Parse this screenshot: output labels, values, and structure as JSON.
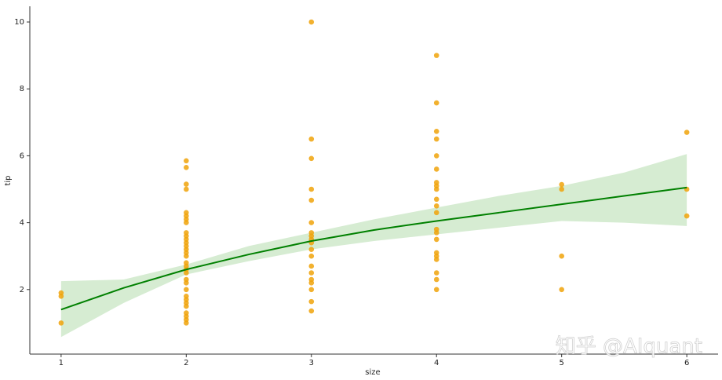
{
  "chart_data": {
    "type": "scatter",
    "xlabel": "size",
    "ylabel": "tip",
    "color": "#f0a30a",
    "x": [
      1,
      1,
      1,
      2,
      2,
      2,
      2,
      2,
      2,
      2,
      2,
      2,
      2,
      2,
      2,
      2,
      2,
      2,
      2,
      2,
      2,
      2,
      2,
      2,
      2,
      2,
      2,
      2,
      2,
      2,
      2,
      2,
      2,
      2,
      3,
      3,
      3,
      3,
      3,
      3,
      3,
      3,
      3,
      3,
      3,
      3,
      3,
      3,
      3,
      3,
      3,
      3,
      3,
      4,
      4,
      4,
      4,
      4,
      4,
      4,
      4,
      4,
      4,
      4,
      4,
      4,
      4,
      4,
      4,
      4,
      4,
      4,
      4,
      4,
      5,
      5,
      5,
      5,
      6,
      6,
      6
    ],
    "values": [
      1.0,
      1.8,
      1.9,
      1.0,
      1.1,
      1.2,
      1.3,
      1.5,
      1.6,
      1.7,
      1.8,
      2.0,
      2.2,
      2.3,
      2.5,
      2.6,
      2.7,
      2.8,
      3.0,
      3.1,
      3.2,
      3.3,
      3.4,
      3.5,
      3.6,
      3.7,
      4.0,
      4.1,
      4.2,
      4.3,
      5.0,
      5.15,
      5.65,
      5.85,
      1.36,
      1.64,
      2.0,
      2.2,
      2.3,
      2.5,
      2.7,
      3.0,
      3.2,
      3.4,
      3.5,
      3.6,
      3.7,
      4.0,
      4.67,
      5.0,
      5.92,
      6.5,
      10.0,
      2.0,
      2.3,
      2.5,
      2.9,
      3.0,
      3.1,
      3.5,
      3.7,
      3.8,
      4.3,
      4.5,
      4.7,
      5.0,
      5.1,
      5.2,
      5.6,
      6.0,
      6.5,
      6.73,
      7.58,
      9.0,
      2.0,
      3.0,
      5.0,
      5.14,
      4.2,
      5.0,
      6.7
    ],
    "fit": {
      "color": "#008000",
      "band_color": "#d6ecd2",
      "x": [
        1,
        1.5,
        2,
        2.5,
        3,
        3.5,
        4,
        4.5,
        5,
        5.5,
        6
      ],
      "values": [
        1.4,
        2.05,
        2.6,
        3.05,
        3.45,
        3.78,
        4.05,
        4.3,
        4.55,
        4.8,
        5.05
      ],
      "lower": [
        0.58,
        1.6,
        2.45,
        2.85,
        3.2,
        3.45,
        3.65,
        3.85,
        4.05,
        4.0,
        3.9
      ],
      "upper": [
        2.25,
        2.3,
        2.75,
        3.3,
        3.7,
        4.1,
        4.45,
        4.8,
        5.1,
        5.5,
        6.05
      ]
    },
    "xlim": [
      0.75,
      6.25
    ],
    "ylim": [
      0.07,
      10.47
    ],
    "xticks": [
      1,
      2,
      3,
      4,
      5,
      6
    ],
    "yticks": [
      2,
      4,
      6,
      8,
      10
    ],
    "watermark": "知乎 @AIquant"
  }
}
